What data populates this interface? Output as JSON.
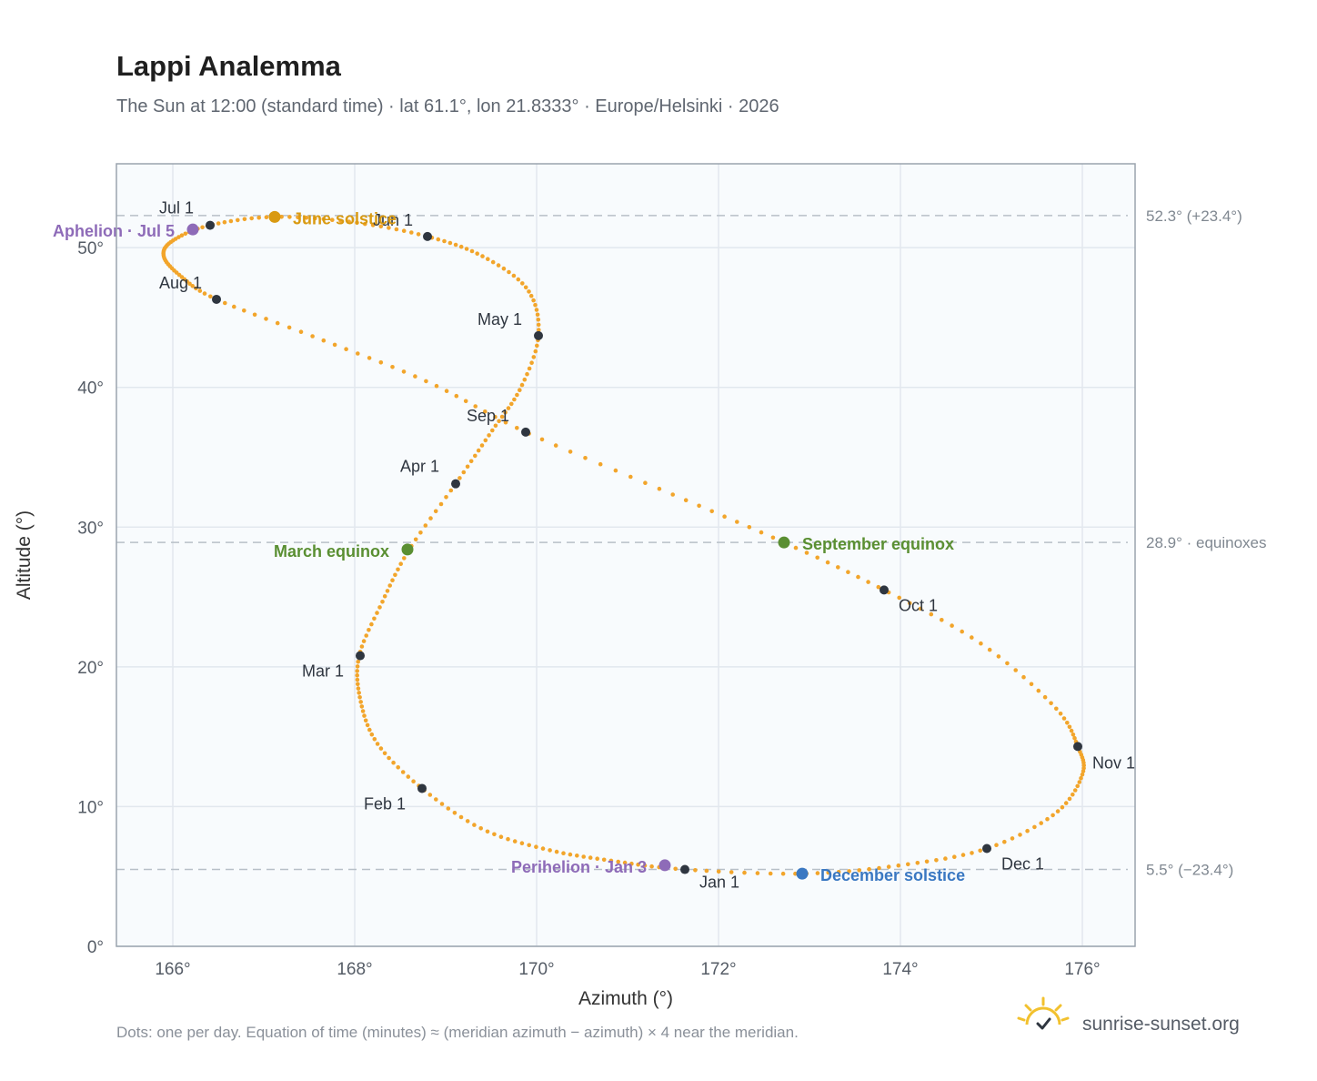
{
  "title": "Lappi Analemma",
  "subtitle": "The Sun at 12:00 (standard time) · lat 61.1°, lon 21.8333° · Europe/Helsinki · 2026",
  "footnote": "Dots: one per day. Equation of time (minutes) ≈ (meridian azimuth − azimuth) × 4 near the meridian.",
  "brand": {
    "name": "sunrise-sunset.org",
    "icon": "sun-check-icon"
  },
  "colors": {
    "path": "#f2a52b",
    "month_marker": "#2f3640",
    "equinox": "#5a8f32",
    "june_solstice": "#d99a12",
    "december_solstice": "#3a78c2",
    "aphelion_perihelion": "#8e6bb8",
    "plot_bg": "#f8fbfd",
    "grid": "#e2e8ee",
    "reference_line": "#b8c0c8"
  },
  "chart_data": {
    "type": "scatter",
    "xlabel": "Azimuth (°)",
    "ylabel": "Altitude (°)",
    "xlim": [
      165.38,
      176.58
    ],
    "ylim": [
      0,
      56
    ],
    "x_ticks": [
      166,
      168,
      170,
      172,
      174,
      176
    ],
    "x_tick_labels": [
      "166°",
      "168°",
      "170°",
      "172°",
      "174°",
      "176°"
    ],
    "y_ticks": [
      0,
      10,
      20,
      30,
      40,
      50
    ],
    "y_tick_labels": [
      "0°",
      "10°",
      "20°",
      "30°",
      "40°",
      "50°"
    ],
    "grid": true,
    "reference_lines": [
      {
        "y": 52.3,
        "label": "52.3° (+23.4°)"
      },
      {
        "y": 28.9,
        "label": "28.9° · equinoxes"
      },
      {
        "y": 5.5,
        "label": "5.5° (−23.4°)"
      }
    ],
    "daily_path": [
      [
        171.63,
        5.5
      ],
      [
        170.85,
        6.1
      ],
      [
        170.13,
        6.9
      ],
      [
        169.4,
        8.4
      ],
      [
        168.74,
        11.3
      ],
      [
        168.25,
        14.5
      ],
      [
        168.06,
        17.7
      ],
      [
        168.05,
        20.8
      ],
      [
        168.3,
        24.6
      ],
      [
        168.6,
        28.4
      ],
      [
        169.11,
        33.1
      ],
      [
        169.5,
        36.8
      ],
      [
        169.82,
        39.9
      ],
      [
        170.02,
        43.7
      ],
      [
        169.9,
        47.0
      ],
      [
        169.4,
        49.4
      ],
      [
        168.8,
        50.8
      ],
      [
        168.0,
        51.8
      ],
      [
        167.12,
        52.2
      ],
      [
        166.41,
        51.6
      ],
      [
        166.0,
        50.5
      ],
      [
        165.9,
        49.4
      ],
      [
        166.08,
        48.0
      ],
      [
        166.48,
        46.3
      ],
      [
        167.6,
        43.5
      ],
      [
        168.8,
        40.4
      ],
      [
        169.88,
        36.8
      ],
      [
        171.4,
        32.6
      ],
      [
        172.72,
        28.9
      ],
      [
        173.82,
        25.5
      ],
      [
        174.9,
        21.6
      ],
      [
        175.7,
        17.1
      ],
      [
        175.95,
        14.3
      ],
      [
        176.0,
        12.3
      ],
      [
        175.7,
        9.5
      ],
      [
        174.95,
        7.0
      ],
      [
        174.0,
        5.8
      ],
      [
        172.92,
        5.2
      ],
      [
        171.63,
        5.5
      ]
    ],
    "month_markers": [
      {
        "label": "Jan 1",
        "x": 171.63,
        "y": 5.5
      },
      {
        "label": "Feb 1",
        "x": 168.74,
        "y": 11.3
      },
      {
        "label": "Mar 1",
        "x": 168.06,
        "y": 20.8
      },
      {
        "label": "Apr 1",
        "x": 169.11,
        "y": 33.1
      },
      {
        "label": "May 1",
        "x": 170.02,
        "y": 43.7
      },
      {
        "label": "Jun 1",
        "x": 168.8,
        "y": 50.8
      },
      {
        "label": "Jul 1",
        "x": 166.41,
        "y": 51.6
      },
      {
        "label": "Aug 1",
        "x": 166.48,
        "y": 46.3
      },
      {
        "label": "Sep 1",
        "x": 169.88,
        "y": 36.8
      },
      {
        "label": "Oct 1",
        "x": 173.82,
        "y": 25.5
      },
      {
        "label": "Nov 1",
        "x": 175.95,
        "y": 14.3
      },
      {
        "label": "Dec 1",
        "x": 174.95,
        "y": 7.0
      }
    ],
    "events": [
      {
        "label": "June solstice",
        "x": 167.12,
        "y": 52.2,
        "kind": "june_solstice"
      },
      {
        "label": "December solstice",
        "x": 172.92,
        "y": 5.2,
        "kind": "december_solstice"
      },
      {
        "label": "March equinox",
        "x": 168.58,
        "y": 28.4,
        "kind": "equinox"
      },
      {
        "label": "September equinox",
        "x": 172.72,
        "y": 28.9,
        "kind": "equinox"
      },
      {
        "label": "Aphelion · Jul 5",
        "x": 166.22,
        "y": 51.3,
        "kind": "aphelion_perihelion"
      },
      {
        "label": "Perihelion · Jan 3",
        "x": 171.41,
        "y": 5.8,
        "kind": "aphelion_perihelion"
      }
    ]
  }
}
